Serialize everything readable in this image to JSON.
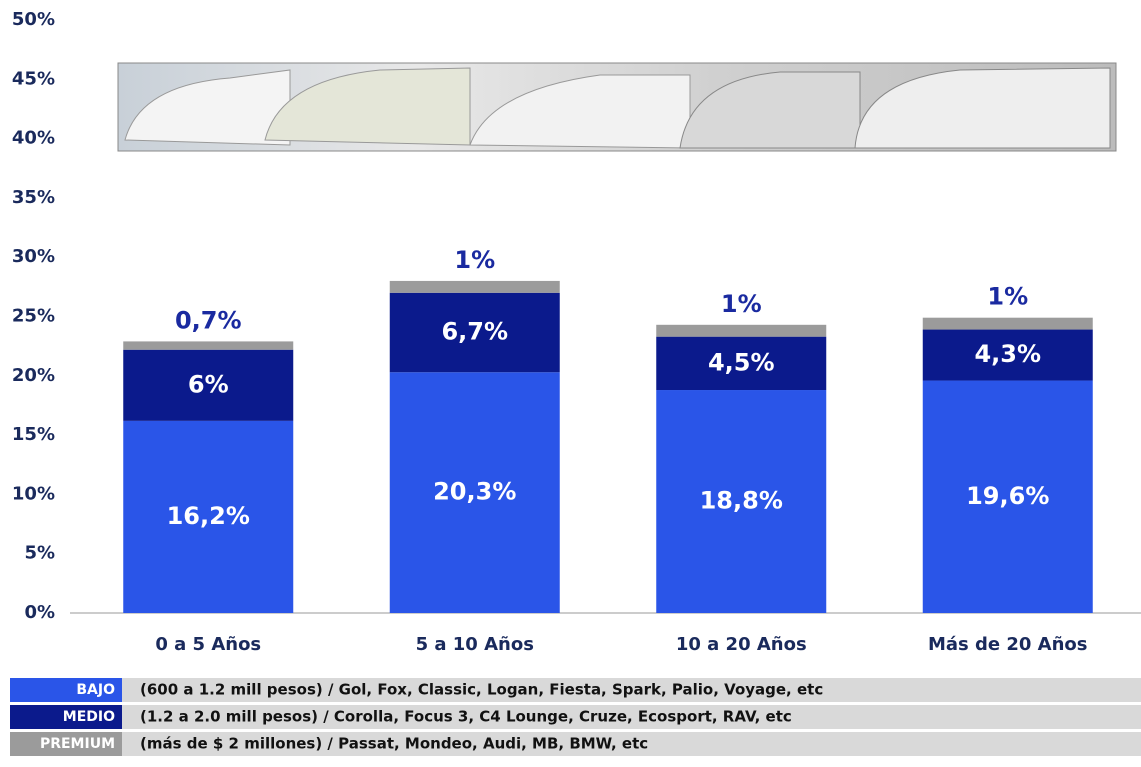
{
  "chart_data": {
    "type": "stacked-bar",
    "categories": [
      "0 a 5 Años",
      "5 a 10 Años",
      "10 a 20 Años",
      "Más de 20 Años"
    ],
    "series": [
      {
        "name": "BAJO",
        "description": "(600 a 1.2 mill pesos) / Gol, Fox, Classic, Logan, Fiesta, Spark, Palio, Voyage, etc",
        "color": "#2a55e8",
        "values": [
          16.2,
          20.3,
          18.8,
          19.6
        ],
        "value_labels": [
          "16,2%",
          "20,3%",
          "18,8%",
          "19,6%"
        ]
      },
      {
        "name": "MEDIO",
        "description": "(1.2 a 2.0 mill pesos)  / Corolla, Focus 3, C4 Lounge, Cruze, Ecosport, RAV, etc",
        "color": "#0b1a8c",
        "values": [
          6,
          6.7,
          4.5,
          4.3
        ],
        "value_labels": [
          "6%",
          "6,7%",
          "4,5%",
          "4,3%"
        ]
      },
      {
        "name": "PREMIUM",
        "description": "(más de $ 2 millones)  / Passat, Mondeo, Audi, MB, BMW, etc",
        "color": "#9b9b9b",
        "values": [
          0.7,
          1,
          1,
          1
        ],
        "value_labels": [
          "0,7%",
          "1%",
          "1%",
          "1%"
        ]
      }
    ],
    "ylim": [
      0,
      50
    ],
    "yticks": [
      {
        "value": 0,
        "label": "0%"
      },
      {
        "value": 5,
        "label": "5%"
      },
      {
        "value": 10,
        "label": "10%"
      },
      {
        "value": 15,
        "label": "15%"
      },
      {
        "value": 20,
        "label": "20%"
      },
      {
        "value": 25,
        "label": "25%"
      },
      {
        "value": 30,
        "label": "30%"
      },
      {
        "value": 35,
        "label": "35%"
      },
      {
        "value": 40,
        "label": "40%"
      },
      {
        "value": 45,
        "label": "45%"
      },
      {
        "value": 50,
        "label": "50%"
      }
    ],
    "grid": false
  }
}
